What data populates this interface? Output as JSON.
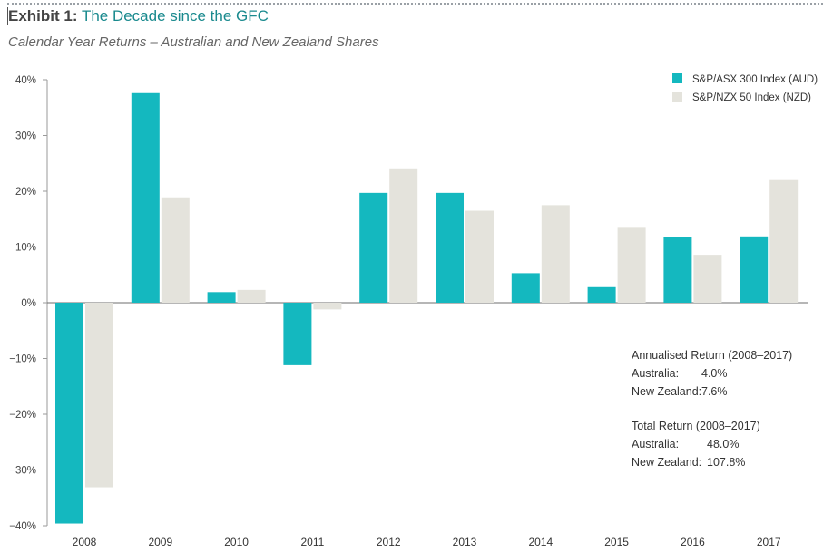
{
  "header": {
    "title_bold": "Exhibit 1:",
    "title_rest": "The Decade since the GFC",
    "subtitle": "Calendar Year Returns – Australian and New Zealand Shares"
  },
  "chart_data": {
    "type": "bar",
    "title": "Calendar Year Returns – Australian and New Zealand Shares",
    "xlabel": "",
    "ylabel": "",
    "ylim": [
      -40,
      40
    ],
    "yticks": [
      40,
      30,
      20,
      10,
      0,
      -10,
      -20,
      -30,
      -40
    ],
    "ytick_labels": [
      "40%",
      "30%",
      "20%",
      "10%",
      "0%",
      "−10%",
      "−20%",
      "−30%",
      "−40%"
    ],
    "categories": [
      "2008",
      "2009",
      "2010",
      "2011",
      "2012",
      "2013",
      "2014",
      "2015",
      "2016",
      "2017"
    ],
    "series": [
      {
        "name": "S&P/ASX 300 Index (AUD)",
        "color": "#14b8bf",
        "values": [
          -39.6,
          37.6,
          1.9,
          -11.2,
          19.7,
          19.7,
          5.3,
          2.8,
          11.8,
          11.9
        ]
      },
      {
        "name": "S&P/NZX 50 Index (NZD)",
        "color": "#e4e3dc",
        "values": [
          -33.1,
          18.9,
          2.3,
          -1.2,
          24.1,
          16.5,
          17.5,
          13.6,
          8.6,
          22.0
        ]
      }
    ],
    "legend_position": "top-right",
    "grid": false
  },
  "annotations": {
    "annualised": {
      "heading": "Annualised Return (2008–2017)",
      "rows": [
        {
          "label": "Australia:",
          "value": "4.0%"
        },
        {
          "label": "New Zealand:",
          "value": "7.6%"
        }
      ]
    },
    "total": {
      "heading": "Total Return (2008–2017)",
      "rows": [
        {
          "label": "Australia:",
          "value": "48.0%"
        },
        {
          "label": "New Zealand:",
          "value": "107.8%"
        }
      ]
    }
  }
}
